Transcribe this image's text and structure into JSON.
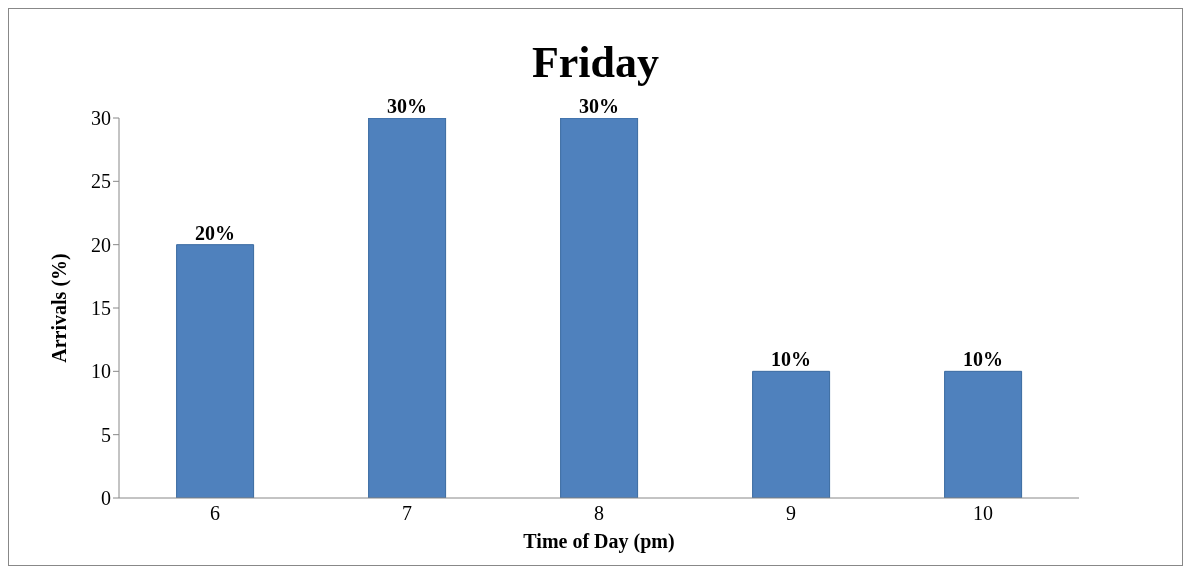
{
  "chart_data": {
    "type": "bar",
    "title": "Friday",
    "xlabel": "Time of Day (pm)",
    "ylabel": "Arrivals (%)",
    "categories": [
      "6",
      "7",
      "8",
      "9",
      "10"
    ],
    "values": [
      20,
      30,
      30,
      10,
      10
    ],
    "value_labels": [
      "20%",
      "30%",
      "30%",
      "10%",
      "10%"
    ],
    "color": "#4f81bd",
    "ylim": [
      0,
      30
    ],
    "yticks": [
      0,
      5,
      10,
      15,
      20,
      25,
      30
    ],
    "grid": false,
    "legend": false
  }
}
